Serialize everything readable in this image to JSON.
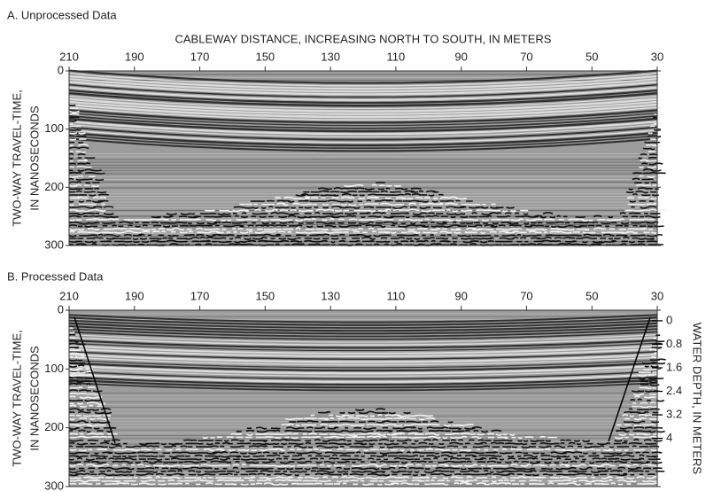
{
  "chart_data": [
    {
      "type": "radargram",
      "title": "A. Unprocessed Data",
      "xlabel": "CABLEWAY DISTANCE, INCREASING NORTH TO SOUTH, IN METERS",
      "ylabel": [
        "TWO-WAY TRAVEL-TIME,",
        "IN NANOSECONDS"
      ],
      "xlim": [
        210,
        30
      ],
      "xticks": [
        210,
        190,
        170,
        150,
        130,
        110,
        90,
        70,
        50,
        30
      ],
      "ylim": [
        300,
        0
      ],
      "yticks": [
        0,
        100,
        200,
        300
      ]
    },
    {
      "type": "radargram",
      "title": "B. Processed Data",
      "ylabel": [
        "TWO-WAY TRAVEL-TIME,",
        "IN NANOSECONDS"
      ],
      "y2label": "WATER DEPTH, IN METERS",
      "xlim": [
        210,
        30
      ],
      "xticks": [
        210,
        190,
        170,
        150,
        130,
        110,
        90,
        70,
        50,
        30
      ],
      "ylim": [
        300,
        0
      ],
      "yticks": [
        0,
        100,
        200,
        300
      ],
      "y2lim": [
        5.64,
        -0.36
      ],
      "y2ticks": [
        0,
        0.8,
        1.6,
        2.4,
        3.2,
        4
      ]
    }
  ]
}
